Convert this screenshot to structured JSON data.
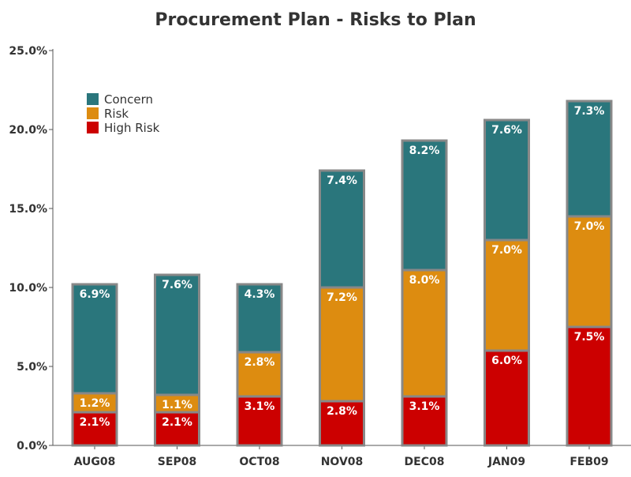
{
  "chart_data": {
    "type": "bar",
    "stacked": true,
    "title": "Procurement Plan - Risks to Plan",
    "xlabel": "",
    "ylabel": "",
    "categories": [
      "AUG08",
      "SEP08",
      "OCT08",
      "NOV08",
      "DEC08",
      "JAN09",
      "FEB09"
    ],
    "series": [
      {
        "name": "High Risk",
        "color": "#cc0000",
        "values": [
          2.1,
          2.1,
          3.1,
          2.8,
          3.1,
          6.0,
          7.5
        ],
        "labels": [
          "2.1%",
          "2.1%",
          "3.1%",
          "2.8%",
          "3.1%",
          "6.0%",
          "7.5%"
        ]
      },
      {
        "name": "Risk",
        "color": "#dd8c10",
        "values": [
          1.2,
          1.1,
          2.8,
          7.2,
          8.0,
          7.0,
          7.0
        ],
        "labels": [
          "1.2%",
          "1.1%",
          "2.8%",
          "7.2%",
          "8.0%",
          "7.0%",
          "7.0%"
        ]
      },
      {
        "name": "Concern",
        "color": "#2a767c",
        "values": [
          6.9,
          7.6,
          4.3,
          7.4,
          8.2,
          7.6,
          7.3
        ],
        "labels": [
          "6.9%",
          "7.6%",
          "4.3%",
          "7.4%",
          "8.2%",
          "7.6%",
          "7.3%"
        ]
      }
    ],
    "legend_order": [
      "Concern",
      "Risk",
      "High Risk"
    ],
    "legend_position": "top-left",
    "ylim": [
      0,
      25
    ],
    "yticks": [
      0,
      5,
      10,
      15,
      20,
      25
    ],
    "ytick_labels": [
      "0.0%",
      "5.0%",
      "10.0%",
      "15.0%",
      "20.0%",
      "25.0%"
    ],
    "grid": false,
    "colors": {
      "bar_outline": "#888888",
      "axis": "#555555",
      "text": "#333333"
    }
  }
}
